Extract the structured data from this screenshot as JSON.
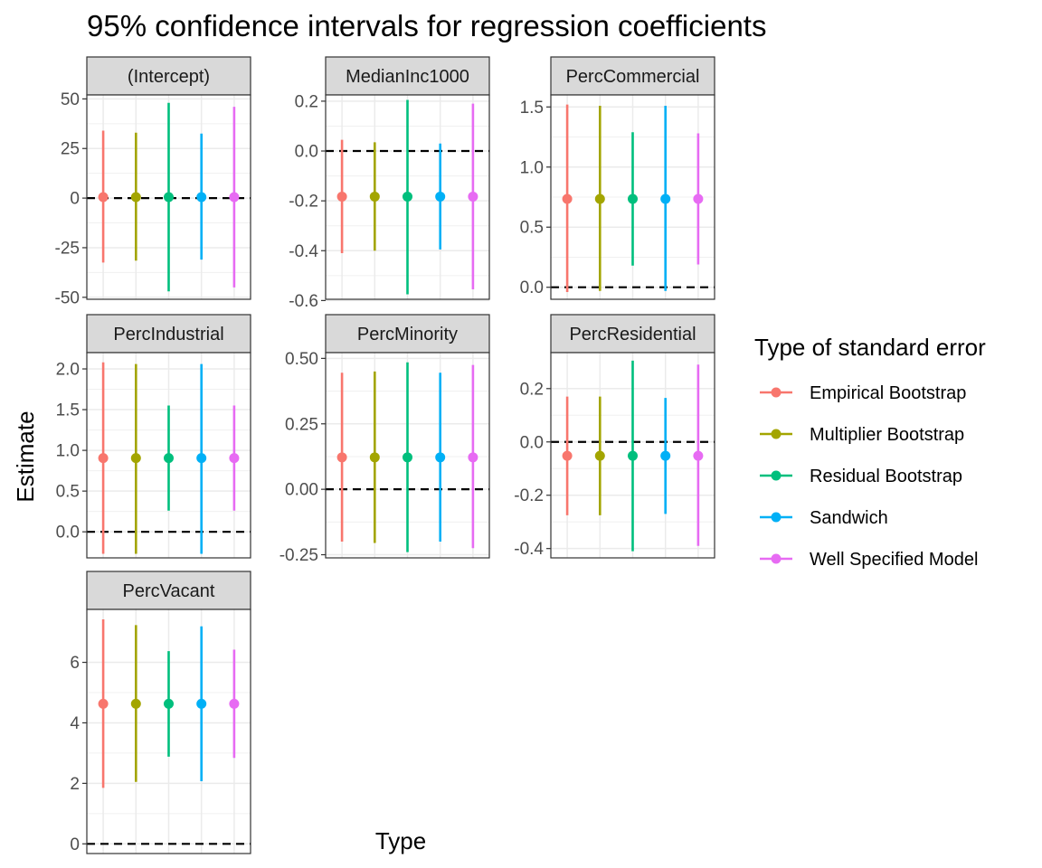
{
  "chart_data": {
    "type": "errorbar",
    "title": "95% confidence intervals for regression coefficients",
    "xlabel": "Type",
    "ylabel": "Estimate",
    "reference_line": 0,
    "grid": true,
    "legend": {
      "title": "Type of standard error",
      "placement": "right"
    },
    "series": [
      {
        "name": "Empirical Bootstrap",
        "color": "#F8766D"
      },
      {
        "name": "Multiplier Bootstrap",
        "color": "#A3A500"
      },
      {
        "name": "Residual Bootstrap",
        "color": "#00BF7D"
      },
      {
        "name": "Sandwich",
        "color": "#00B0F6"
      },
      {
        "name": "Well Specified Model",
        "color": "#E76BF3"
      }
    ],
    "panels": [
      {
        "label": "(Intercept)",
        "ylim": [
          -51,
          52
        ],
        "ticks": [
          {
            "v": -50,
            "l": "-50"
          },
          {
            "v": -25,
            "l": "-25"
          },
          {
            "v": 0,
            "l": "0"
          },
          {
            "v": 25,
            "l": "25"
          },
          {
            "v": 50,
            "l": "50"
          }
        ],
        "estimates": [
          0.5,
          0.5,
          0.5,
          0.5,
          0.5
        ],
        "lower": [
          -32.5,
          -31.5,
          -47,
          -31,
          -45
        ],
        "upper": [
          34,
          33,
          48,
          32.5,
          46
        ]
      },
      {
        "label": "MedianInc1000",
        "ylim": [
          -0.595,
          0.225
        ],
        "ticks": [
          {
            "v": -0.6,
            "l": "-0.6"
          },
          {
            "v": -0.4,
            "l": "-0.4"
          },
          {
            "v": -0.2,
            "l": "-0.2"
          },
          {
            "v": 0,
            "l": "0.0"
          },
          {
            "v": 0.2,
            "l": "0.2"
          }
        ],
        "estimates": [
          -0.183,
          -0.183,
          -0.183,
          -0.183,
          -0.183
        ],
        "lower": [
          -0.41,
          -0.4,
          -0.575,
          -0.395,
          -0.555
        ],
        "upper": [
          0.045,
          0.035,
          0.205,
          0.03,
          0.19
        ]
      },
      {
        "label": "PercCommercial",
        "ylim": [
          -0.1,
          1.6
        ],
        "ticks": [
          {
            "v": 0,
            "l": "0.0"
          },
          {
            "v": 0.5,
            "l": "0.5"
          },
          {
            "v": 1,
            "l": "1.0"
          },
          {
            "v": 1.5,
            "l": "1.5"
          }
        ],
        "estimates": [
          0.735,
          0.735,
          0.735,
          0.735,
          0.735
        ],
        "lower": [
          -0.04,
          -0.03,
          0.18,
          -0.03,
          0.19
        ],
        "upper": [
          1.52,
          1.51,
          1.29,
          1.51,
          1.28
        ]
      },
      {
        "label": "PercIndustrial",
        "ylim": [
          -0.32,
          2.2
        ],
        "ticks": [
          {
            "v": 0,
            "l": "0.0"
          },
          {
            "v": 0.5,
            "l": "0.5"
          },
          {
            "v": 1,
            "l": "1.0"
          },
          {
            "v": 1.5,
            "l": "1.5"
          },
          {
            "v": 2,
            "l": "2.0"
          }
        ],
        "estimates": [
          0.905,
          0.905,
          0.905,
          0.905,
          0.905
        ],
        "lower": [
          -0.27,
          -0.27,
          0.26,
          -0.27,
          0.26
        ],
        "upper": [
          2.08,
          2.06,
          1.55,
          2.06,
          1.55
        ]
      },
      {
        "label": "PercMinority",
        "ylim": [
          -0.262,
          0.522
        ],
        "ticks": [
          {
            "v": -0.25,
            "l": "-0.25"
          },
          {
            "v": 0,
            "l": "0.00"
          },
          {
            "v": 0.25,
            "l": "0.25"
          },
          {
            "v": 0.5,
            "l": "0.50"
          }
        ],
        "estimates": [
          0.122,
          0.122,
          0.122,
          0.122,
          0.122
        ],
        "lower": [
          -0.2,
          -0.205,
          -0.24,
          -0.2,
          -0.225
        ],
        "upper": [
          0.445,
          0.45,
          0.485,
          0.445,
          0.475
        ]
      },
      {
        "label": "PercResidential",
        "ylim": [
          -0.435,
          0.335
        ],
        "ticks": [
          {
            "v": -0.4,
            "l": "-0.4"
          },
          {
            "v": -0.2,
            "l": "-0.2"
          },
          {
            "v": 0,
            "l": "0.0"
          },
          {
            "v": 0.2,
            "l": "0.2"
          }
        ],
        "estimates": [
          -0.052,
          -0.052,
          -0.052,
          -0.052,
          -0.052
        ],
        "lower": [
          -0.275,
          -0.275,
          -0.41,
          -0.27,
          -0.39
        ],
        "upper": [
          0.17,
          0.17,
          0.305,
          0.165,
          0.29
        ]
      },
      {
        "label": "PercVacant",
        "ylim": [
          -0.32,
          7.75
        ],
        "ticks": [
          {
            "v": 0,
            "l": "0"
          },
          {
            "v": 2,
            "l": "2"
          },
          {
            "v": 4,
            "l": "4"
          },
          {
            "v": 6,
            "l": "6"
          }
        ],
        "estimates": [
          4.63,
          4.63,
          4.63,
          4.63,
          4.63
        ],
        "lower": [
          1.85,
          2.05,
          2.88,
          2.07,
          2.84
        ],
        "upper": [
          7.42,
          7.23,
          6.37,
          7.19,
          6.42
        ]
      }
    ]
  }
}
